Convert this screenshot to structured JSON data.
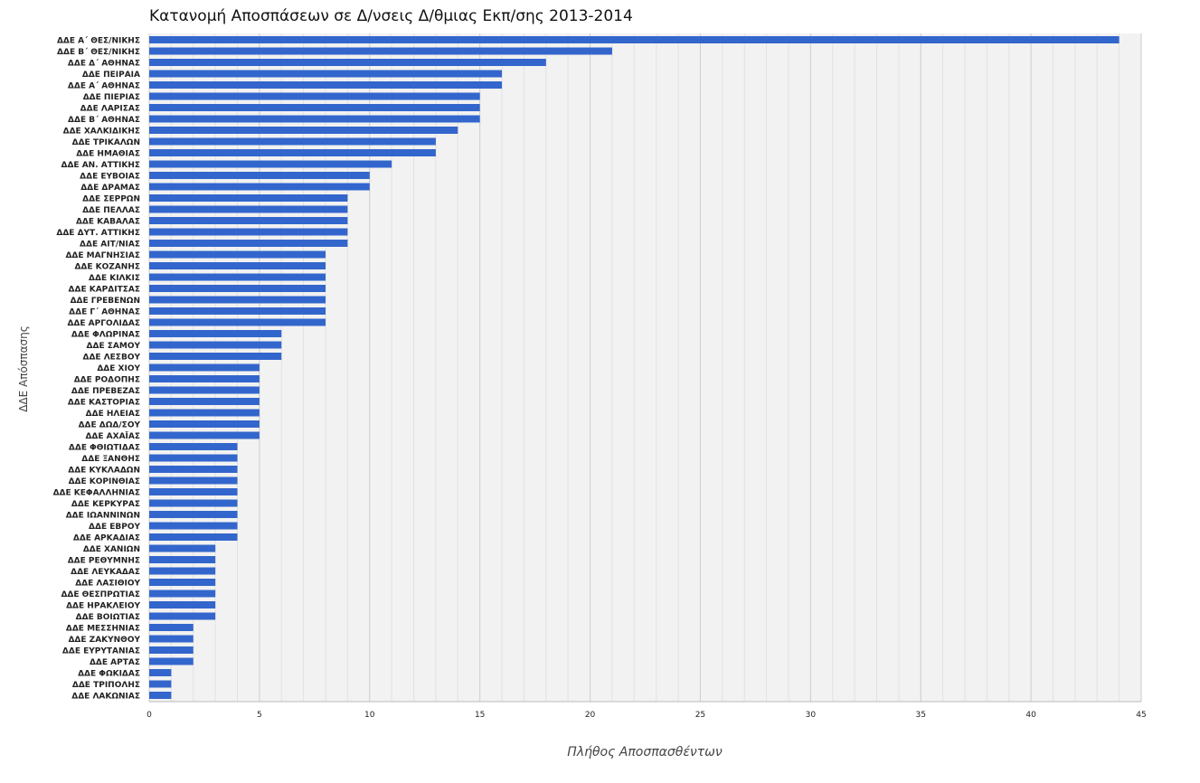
{
  "chart_data": {
    "type": "bar",
    "orientation": "horizontal",
    "title": "Κατανομή Αποσπάσεων σε Δ/νσεις Δ/θμιας Εκπ/σης 2013-2014",
    "xlabel": "Πλήθος Αποσπασθέντων",
    "ylabel": "ΔΔΕ Απόσπασης",
    "xlim": [
      0,
      45
    ],
    "x_ticks": [
      0,
      5,
      10,
      15,
      20,
      25,
      30,
      35,
      40,
      45
    ],
    "grid": true,
    "bar_color": "#3366cc",
    "plot_background": "#f2f2f2",
    "categories": [
      "ΔΔΕ Α΄ ΘΕΣ/ΝΙΚΗΣ",
      "ΔΔΕ Β΄ ΘΕΣ/ΝΙΚΗΣ",
      "ΔΔΕ Δ΄ ΑΘΗΝΑΣ",
      "ΔΔΕ ΠΕΙΡΑΙΑ",
      "ΔΔΕ Α΄ ΑΘΗΝΑΣ",
      "ΔΔΕ ΠΙΕΡΙΑΣ",
      "ΔΔΕ ΛΑΡΙΣΑΣ",
      "ΔΔΕ Β΄ ΑΘΗΝΑΣ",
      "ΔΔΕ ΧΑΛΚΙΔΙΚΗΣ",
      "ΔΔΕ ΤΡΙΚΑΛΩΝ",
      "ΔΔΕ ΗΜΑΘΙΑΣ",
      "ΔΔΕ ΑΝ. ΑΤΤΙΚΗΣ",
      "ΔΔΕ ΕΥΒΟΙΑΣ",
      "ΔΔΕ ΔΡΑΜΑΣ",
      "ΔΔΕ ΣΕΡΡΩΝ",
      "ΔΔΕ ΠΕΛΛΑΣ",
      "ΔΔΕ ΚΑΒΑΛΑΣ",
      "ΔΔΕ ΔΥΤ. ΑΤΤΙΚΗΣ",
      "ΔΔΕ ΑΙΤ/ΝΙΑΣ",
      "ΔΔΕ ΜΑΓΝΗΣΙΑΣ",
      "ΔΔΕ ΚΟΖΑΝΗΣ",
      "ΔΔΕ ΚΙΛΚΙΣ",
      "ΔΔΕ ΚΑΡΔΙΤΣΑΣ",
      "ΔΔΕ ΓΡΕΒΕΝΩΝ",
      "ΔΔΕ Γ΄ ΑΘΗΝΑΣ",
      "ΔΔΕ ΑΡΓΟΛΙΔΑΣ",
      "ΔΔΕ ΦΛΩΡΙΝΑΣ",
      "ΔΔΕ ΣΑΜΟΥ",
      "ΔΔΕ ΛΕΣΒΟΥ",
      "ΔΔΕ ΧΙΟΥ",
      "ΔΔΕ ΡΟΔΟΠΗΣ",
      "ΔΔΕ ΠΡΕΒΕΖΑΣ",
      "ΔΔΕ ΚΑΣΤΟΡΙΑΣ",
      "ΔΔΕ ΗΛΕΙΑΣ",
      "ΔΔΕ ΔΩΔ/ΣΟΥ",
      "ΔΔΕ ΑΧΑΪΑΣ",
      "ΔΔΕ ΦΘΙΩΤΙΔΑΣ",
      "ΔΔΕ ΞΑΝΘΗΣ",
      "ΔΔΕ ΚΥΚΛΑΔΩΝ",
      "ΔΔΕ ΚΟΡΙΝΘΙΑΣ",
      "ΔΔΕ ΚΕΦΑΛΛΗΝΙΑΣ",
      "ΔΔΕ ΚΕΡΚΥΡΑΣ",
      "ΔΔΕ ΙΩΑΝΝΙΝΩΝ",
      "ΔΔΕ ΕΒΡΟΥ",
      "ΔΔΕ ΑΡΚΑΔΙΑΣ",
      "ΔΔΕ ΧΑΝΙΩΝ",
      "ΔΔΕ ΡΕΘΥΜΝΗΣ",
      "ΔΔΕ ΛΕΥΚΑΔΑΣ",
      "ΔΔΕ ΛΑΣΙΘΙΟΥ",
      "ΔΔΕ ΘΕΣΠΡΩΤΙΑΣ",
      "ΔΔΕ ΗΡΑΚΛΕΙΟΥ",
      "ΔΔΕ ΒΟΙΩΤΙΑΣ",
      "ΔΔΕ ΜΕΣΣΗΝΙΑΣ",
      "ΔΔΕ ΖΑΚΥΝΘΟΥ",
      "ΔΔΕ ΕΥΡΥΤΑΝΙΑΣ",
      "ΔΔΕ ΑΡΤΑΣ",
      "ΔΔΕ ΦΩΚΙΔΑΣ",
      "ΔΔΕ ΤΡΙΠΟΛΗΣ",
      "ΔΔΕ ΛΑΚΩΝΙΑΣ"
    ],
    "values": [
      44,
      21,
      18,
      16,
      16,
      15,
      15,
      15,
      14,
      13,
      13,
      11,
      10,
      10,
      9,
      9,
      9,
      9,
      9,
      8,
      8,
      8,
      8,
      8,
      8,
      8,
      6,
      6,
      6,
      5,
      5,
      5,
      5,
      5,
      5,
      5,
      4,
      4,
      4,
      4,
      4,
      4,
      4,
      4,
      4,
      3,
      3,
      3,
      3,
      3,
      3,
      3,
      2,
      2,
      2,
      2,
      1,
      1,
      1
    ]
  }
}
